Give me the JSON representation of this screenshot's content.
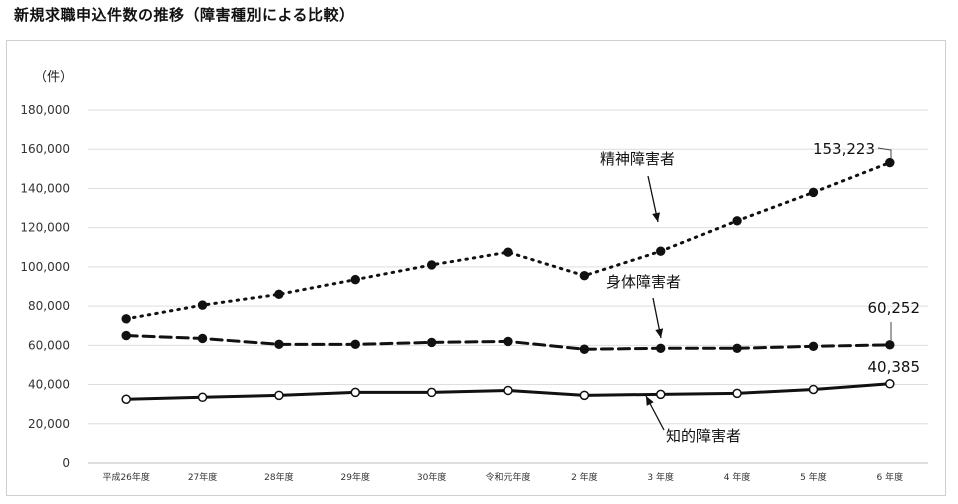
{
  "title": "新規求職申込件数の推移（障害種別による比較）",
  "chart_data": {
    "type": "line",
    "title": "新規求職申込件数の推移（障害種別による比較）",
    "ylabel": "（件）",
    "xlabel": "",
    "ylim": [
      0,
      180000
    ],
    "yticks": [
      "0",
      "20,000",
      "40,000",
      "60,000",
      "80,000",
      "100,000",
      "120,000",
      "140,000",
      "160,000",
      "180,000"
    ],
    "yticks_values": [
      0,
      20000,
      40000,
      60000,
      80000,
      100000,
      120000,
      140000,
      160000,
      180000
    ],
    "grid": true,
    "legend": "none",
    "categories": [
      "平成26年度",
      "27年度",
      "28年度",
      "29年度",
      "30年度",
      "令和元年度",
      "2 年度",
      "3 年度",
      "4 年度",
      "5 年度",
      "6 年度"
    ],
    "series": [
      {
        "name": "精神障害者",
        "style": "dotted",
        "marker": "filled",
        "values": [
          73500,
          80500,
          86000,
          93500,
          101000,
          107500,
          95500,
          108000,
          123500,
          138000,
          153223
        ]
      },
      {
        "name": "身体障害者",
        "style": "dashed",
        "marker": "filled",
        "values": [
          65000,
          63500,
          60500,
          60500,
          61500,
          62000,
          58000,
          58500,
          58500,
          59500,
          60252
        ]
      },
      {
        "name": "知的障害者",
        "style": "solid",
        "marker": "open",
        "values": [
          32500,
          33500,
          34500,
          36000,
          36000,
          37000,
          34500,
          35000,
          35500,
          37500,
          40385
        ]
      }
    ],
    "data_labels": [
      {
        "series": 0,
        "index": 10,
        "text": "153,223"
      },
      {
        "series": 1,
        "index": 10,
        "text": "60,252"
      },
      {
        "series": 2,
        "index": 10,
        "text": "40,385"
      }
    ],
    "annotations": [
      {
        "series": 0,
        "text": "精神障害者"
      },
      {
        "series": 1,
        "text": "身体障害者"
      },
      {
        "series": 2,
        "text": "知的障害者"
      }
    ]
  }
}
